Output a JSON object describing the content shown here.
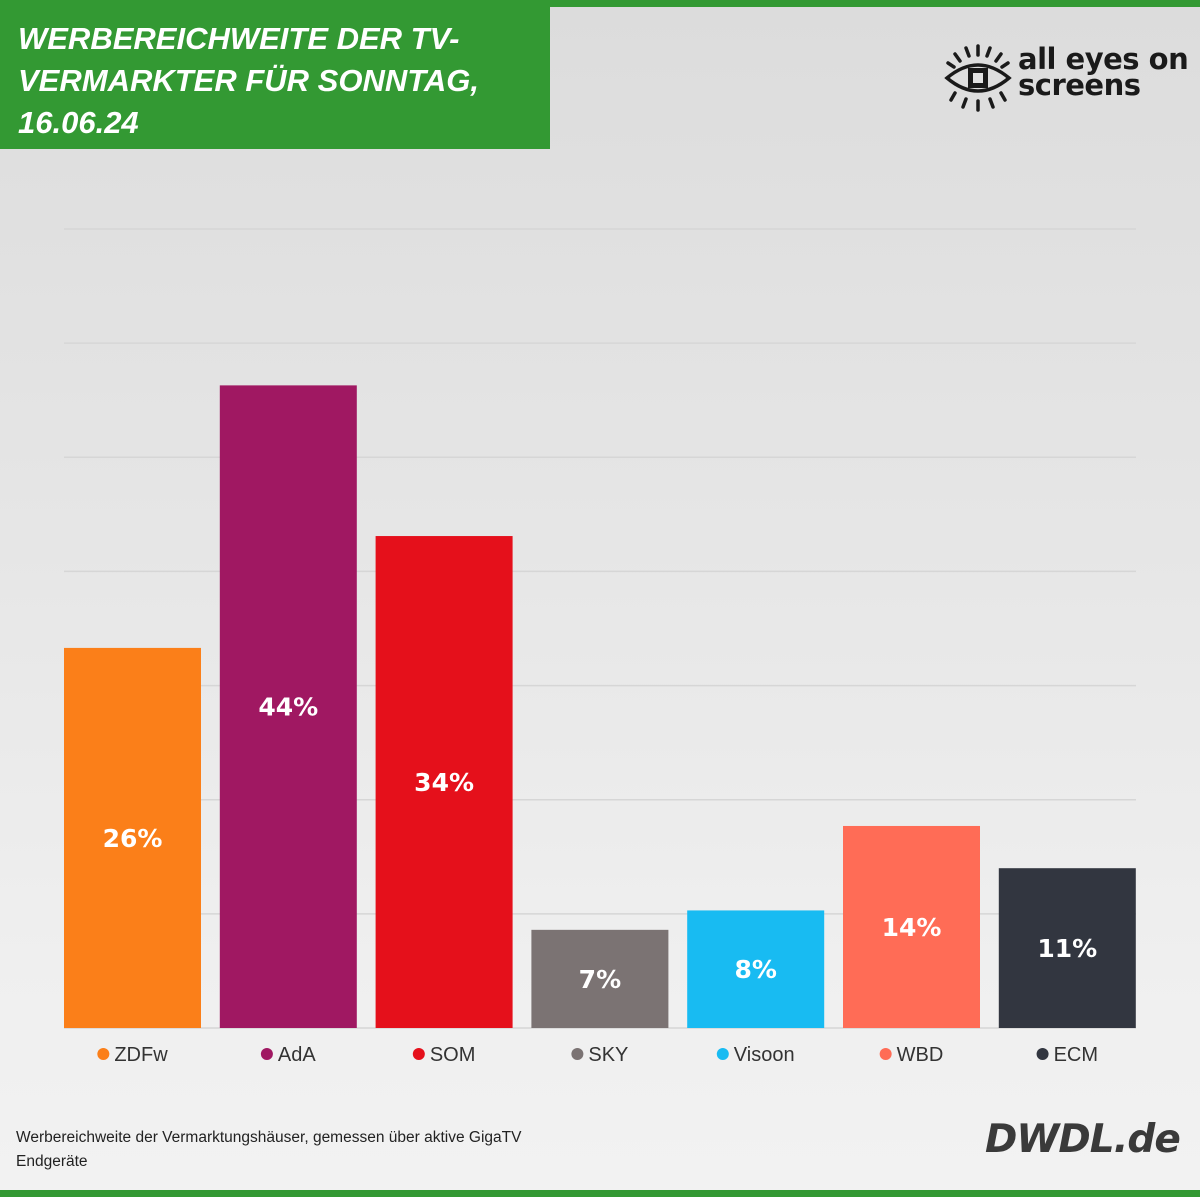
{
  "title": "WERBEREICHWEITE DER TV-VERMARKTER FÜR SONNTAG, 16.06.24",
  "title_lines": [
    "WERBEREICHWEITE DER TV-",
    "VERMARKTER FÜR SONNTAG,",
    "16.06.24"
  ],
  "logo": {
    "line1": "all eyes on",
    "line2": "screens",
    "icon": "eye-icon"
  },
  "brand": "DWDL.de",
  "footnote_lines": [
    "Werbereichweite der Vermarktungshäuser, gemessen über aktive GigaTV",
    "Endgeräte"
  ],
  "colors": {
    "header": "#339933",
    "grid": "#d6d6d6"
  },
  "chart_data": {
    "type": "bar",
    "title": "WERBEREICHWEITE DER TV-VERMARKTER FÜR SONNTAG, 16.06.24",
    "xlabel": "",
    "ylabel": "",
    "ylim": [
      0,
      70
    ],
    "grid": true,
    "legend": "bottom",
    "categories": [
      "ZDFw",
      "AdA",
      "SOM",
      "SKY",
      "Visoon",
      "WBD",
      "ECM"
    ],
    "values": [
      33.3,
      56.3,
      43.1,
      8.6,
      10.3,
      17.7,
      14.0
    ],
    "labels": [
      "26%",
      "44%",
      "34%",
      "7%",
      "8%",
      "14%",
      "11%"
    ],
    "colors": [
      "#fb7f19",
      "#a01862",
      "#e5101b",
      "#7b7373",
      "#18bbf2",
      "#ff6c56",
      "#323640"
    ]
  }
}
